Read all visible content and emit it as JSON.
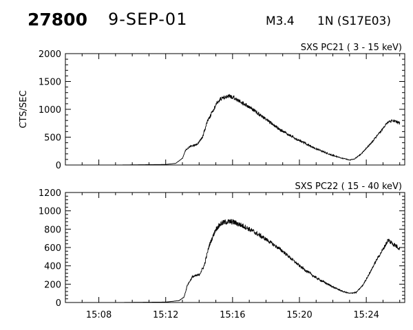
{
  "header": {
    "event_id": "27800",
    "date": "9-SEP-01",
    "flare_class": "M3.4",
    "location": "1N (S17E03)"
  },
  "chart_data": [
    {
      "type": "line",
      "title": "SXS PC21  (  3 - 15 keV)",
      "ylabel": "CTS/SEC",
      "xlabel": "",
      "ylim": [
        0,
        2000
      ],
      "yticks": [
        0,
        500,
        1000,
        1500,
        2000
      ],
      "ytick_labels": [
        "0",
        "500",
        "1000",
        "1500",
        "2000"
      ],
      "xlim": [
        906,
        1566
      ],
      "xticks": [
        908,
        912,
        916,
        920,
        924
      ],
      "xtick_labels": [
        "",
        "",
        "",
        "",
        ""
      ],
      "x_unit": "minutes after 00:00 UT",
      "series": [
        {
          "color": "#000000",
          "x": [
            906,
            909,
            912,
            912.6,
            913,
            913.2,
            913.5,
            913.9,
            914.2,
            914.5,
            914.9,
            915.2,
            915.5,
            915.8,
            916.1,
            916.4,
            916.8,
            917.3,
            918,
            919,
            920,
            921,
            922,
            922.6,
            923,
            923.3,
            923.7,
            924.3,
            924.8,
            925.3,
            925.6,
            926
          ],
          "y": [
            0,
            0,
            10,
            30,
            120,
            270,
            340,
            370,
            500,
            790,
            1020,
            1170,
            1220,
            1230,
            1210,
            1150,
            1080,
            980,
            820,
            600,
            440,
            290,
            170,
            120,
            90,
            110,
            200,
            400,
            580,
            780,
            800,
            750
          ],
          "noise": [
            0,
            0,
            0,
            2,
            5,
            10,
            14,
            16,
            20,
            26,
            32,
            36,
            40,
            40,
            38,
            36,
            34,
            32,
            28,
            24,
            20,
            16,
            12,
            8,
            6,
            6,
            8,
            14,
            18,
            26,
            28,
            26
          ]
        }
      ]
    },
    {
      "type": "line",
      "title": "SXS PC22  ( 15 - 40 keV)",
      "ylabel": "",
      "xlabel": "",
      "ylim": [
        0,
        1200
      ],
      "yticks": [
        0,
        200,
        400,
        600,
        800,
        1000,
        1200
      ],
      "ytick_labels": [
        "0",
        "200",
        "400",
        "600",
        "800",
        "1000",
        "1200"
      ],
      "xlim": [
        906,
        1566
      ],
      "xticks": [
        908,
        912,
        916,
        920,
        924
      ],
      "xtick_labels": [
        "15:08",
        "15:12",
        "15:16",
        "15:20",
        "15:24"
      ],
      "x_unit": "minutes after 00:00 UT",
      "series": [
        {
          "color": "#000000",
          "x": [
            906,
            909,
            912,
            912.8,
            913.1,
            913.3,
            913.6,
            914,
            914.3,
            914.6,
            915,
            915.3,
            915.6,
            916,
            916.3,
            916.7,
            917.2,
            918,
            919,
            920,
            921,
            922,
            922.6,
            923,
            923.4,
            923.8,
            924.2,
            924.6,
            925,
            925.3,
            925.6,
            926
          ],
          "y": [
            0,
            0,
            5,
            20,
            60,
            190,
            280,
            300,
            400,
            620,
            800,
            860,
            880,
            880,
            860,
            830,
            780,
            690,
            560,
            400,
            270,
            170,
            120,
            100,
            110,
            190,
            320,
            460,
            580,
            680,
            640,
            590
          ],
          "noise": [
            0,
            0,
            0,
            2,
            5,
            10,
            12,
            14,
            18,
            22,
            26,
            30,
            32,
            32,
            30,
            28,
            26,
            22,
            18,
            16,
            12,
            10,
            6,
            5,
            5,
            6,
            10,
            14,
            18,
            26,
            26,
            24
          ]
        }
      ]
    }
  ]
}
